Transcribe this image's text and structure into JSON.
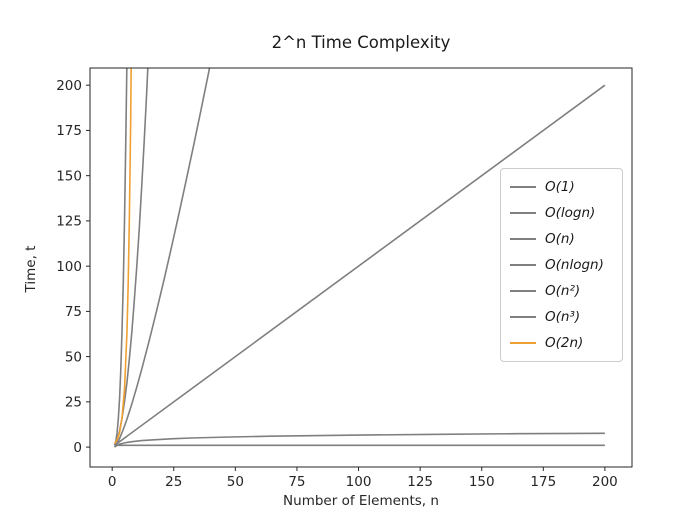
{
  "chart_data": {
    "type": "line",
    "title": "2^n Time Complexity",
    "xlabel": "Number of Elements, n",
    "ylabel": "Time, t",
    "xlim": [
      -9,
      211
    ],
    "ylim": [
      -11,
      209.5
    ],
    "x_ticks": [
      0,
      25,
      50,
      75,
      100,
      125,
      150,
      175,
      200
    ],
    "y_ticks": [
      0,
      25,
      50,
      75,
      100,
      125,
      150,
      175,
      200
    ],
    "grid": false,
    "legend_position": "center right",
    "colors": {
      "default_line": "#7f7f7f",
      "highlight_line": "#efa032",
      "axis": "#262626",
      "legend_border": "#cccccc"
    },
    "series": [
      {
        "name": "O(1)",
        "color": "#7f7f7f",
        "points": [
          [
            1,
            1
          ],
          [
            200,
            1
          ]
        ]
      },
      {
        "name": "O(logn)",
        "color": "#7f7f7f",
        "points": [
          [
            1,
            0
          ],
          [
            1.5,
            0.6
          ],
          [
            2,
            1
          ],
          [
            3,
            1.6
          ],
          [
            4,
            2
          ],
          [
            6,
            2.6
          ],
          [
            8,
            3
          ],
          [
            12,
            3.6
          ],
          [
            16,
            4
          ],
          [
            24,
            4.6
          ],
          [
            32,
            5
          ],
          [
            48,
            5.6
          ],
          [
            64,
            6
          ],
          [
            96,
            6.6
          ],
          [
            128,
            7
          ],
          [
            164,
            7.4
          ],
          [
            200,
            7.6
          ]
        ]
      },
      {
        "name": "O(n)",
        "color": "#7f7f7f",
        "points": [
          [
            1,
            1
          ],
          [
            200,
            200
          ]
        ]
      },
      {
        "name": "O(nlogn)",
        "color": "#7f7f7f",
        "points": [
          [
            1,
            0
          ],
          [
            2,
            2
          ],
          [
            3,
            4.8
          ],
          [
            4,
            8
          ],
          [
            5,
            11.6
          ],
          [
            6,
            15.5
          ],
          [
            8,
            24
          ],
          [
            10,
            33.2
          ],
          [
            12,
            43
          ],
          [
            15,
            58.6
          ],
          [
            18,
            75.1
          ],
          [
            21,
            92.2
          ],
          [
            24,
            110
          ],
          [
            27,
            128.4
          ],
          [
            30,
            147.2
          ],
          [
            33,
            166.4
          ],
          [
            36,
            186
          ],
          [
            39,
            206.1
          ],
          [
            40,
            212.9
          ]
        ]
      },
      {
        "name": "O(n²)",
        "color": "#7f7f7f",
        "points": [
          [
            1,
            1
          ],
          [
            2,
            4
          ],
          [
            3,
            9
          ],
          [
            4,
            16
          ],
          [
            5,
            25
          ],
          [
            6,
            36
          ],
          [
            7,
            49
          ],
          [
            8,
            64
          ],
          [
            9,
            81
          ],
          [
            10,
            100
          ],
          [
            11,
            121
          ],
          [
            12,
            144
          ],
          [
            13,
            169
          ],
          [
            14,
            196
          ],
          [
            15,
            225
          ]
        ]
      },
      {
        "name": "O(n³)",
        "color": "#7f7f7f",
        "points": [
          [
            1,
            1
          ],
          [
            1.5,
            3.4
          ],
          [
            2,
            8
          ],
          [
            2.5,
            15.6
          ],
          [
            3,
            27
          ],
          [
            3.5,
            42.9
          ],
          [
            4,
            64
          ],
          [
            4.5,
            91.1
          ],
          [
            5,
            125
          ],
          [
            5.5,
            166.4
          ],
          [
            6,
            216
          ]
        ]
      },
      {
        "name": "O(2n)",
        "color": "#efa032",
        "points": [
          [
            1,
            2
          ],
          [
            2,
            4
          ],
          [
            3,
            8
          ],
          [
            4,
            16
          ],
          [
            5,
            32
          ],
          [
            6,
            64
          ],
          [
            6.5,
            90.5
          ],
          [
            7,
            128
          ],
          [
            7.5,
            181
          ],
          [
            8,
            256
          ]
        ]
      }
    ]
  }
}
